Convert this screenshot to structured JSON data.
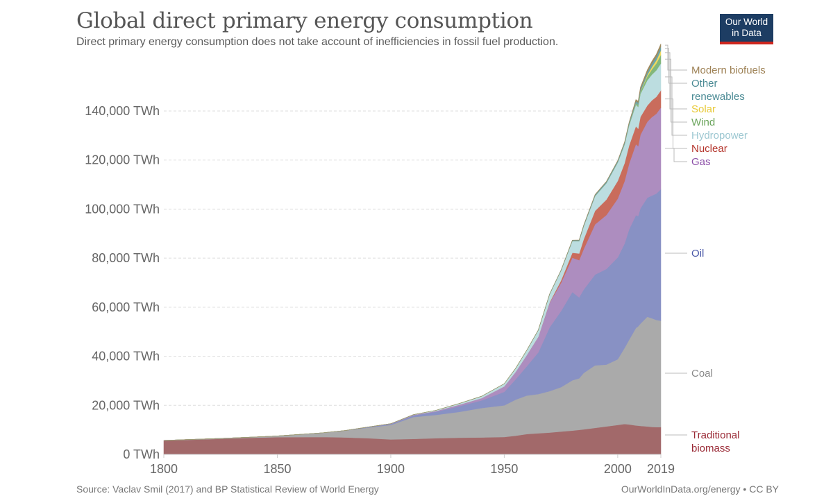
{
  "header": {
    "title": "Global direct primary energy consumption",
    "subtitle": "Direct primary energy consumption does not take account of inefficiencies in fossil fuel production.",
    "logo_line1": "Our World",
    "logo_line2": "in Data"
  },
  "footer": {
    "source": "Source: Vaclav Smil (2017) and BP Statistical Review of World Energy",
    "credit": "OurWorldInData.org/energy • CC BY"
  },
  "chart_data": {
    "type": "area",
    "stacked": true,
    "title": "Global direct primary energy consumption",
    "subtitle": "Direct primary energy consumption does not take account of inefficiencies in fossil fuel production.",
    "xlabel": "",
    "ylabel": "",
    "unit": "TWh",
    "xlim": [
      1800,
      2019
    ],
    "ylim": [
      0,
      160000
    ],
    "x_ticks": [
      "1800",
      "1850",
      "1900",
      "1950",
      "2000",
      "2019"
    ],
    "y_ticks": [
      "0 TWh",
      "20,000 TWh",
      "40,000 TWh",
      "60,000 TWh",
      "80,000 TWh",
      "100,000 TWh",
      "120,000 TWh",
      "140,000 TWh"
    ],
    "y_tick_values": [
      0,
      20000,
      40000,
      60000,
      80000,
      100000,
      120000,
      140000
    ],
    "grid": "horizontal-dashed",
    "legend": "right",
    "x": [
      1800,
      1810,
      1820,
      1830,
      1840,
      1850,
      1860,
      1870,
      1880,
      1890,
      1900,
      1910,
      1920,
      1930,
      1940,
      1950,
      1955,
      1960,
      1965,
      1970,
      1975,
      1980,
      1983,
      1985,
      1990,
      1995,
      2000,
      2003,
      2005,
      2008,
      2009,
      2010,
      2013,
      2015,
      2017,
      2019
    ],
    "series": [
      {
        "name": "Traditional biomass",
        "color": "#a2696a",
        "label_color": "#9a2a36",
        "values": [
          5600,
          5900,
          6200,
          6500,
          6800,
          7000,
          7050,
          7100,
          6900,
          6600,
          6100,
          6300,
          6600,
          6800,
          6900,
          7100,
          7600,
          8300,
          8600,
          8900,
          9300,
          9700,
          10000,
          10200,
          10800,
          11400,
          12000,
          12400,
          12200,
          11800,
          11700,
          11600,
          11400,
          11200,
          11100,
          11100
        ]
      },
      {
        "name": "Coal",
        "color": "#aaaaaa",
        "label_color": "#888888",
        "values": [
          100,
          120,
          150,
          200,
          300,
          500,
          1100,
          1700,
          2800,
          4300,
          5900,
          8900,
          9500,
          10500,
          12000,
          12900,
          14700,
          15700,
          16000,
          16900,
          18100,
          20500,
          21000,
          23000,
          25500,
          25200,
          26800,
          31000,
          34500,
          39700,
          40500,
          41700,
          44700,
          44300,
          43700,
          43400
        ]
      },
      {
        "name": "Oil",
        "color": "#8891c4",
        "label_color": "#4a58a8",
        "values": [
          0,
          0,
          0,
          0,
          0,
          0,
          0,
          0,
          50,
          200,
          400,
          700,
          1300,
          2300,
          3100,
          5500,
          8300,
          12000,
          17000,
          26000,
          31000,
          36000,
          33000,
          34000,
          37000,
          39000,
          41500,
          42500,
          45000,
          46000,
          45000,
          47000,
          48500,
          50000,
          51500,
          53600
        ]
      },
      {
        "name": "Gas",
        "color": "#ad8dbf",
        "label_color": "#8c4fa8",
        "values": [
          0,
          0,
          0,
          0,
          0,
          0,
          0,
          0,
          0,
          50,
          100,
          200,
          300,
          600,
          900,
          2200,
          3000,
          4600,
          6300,
          10000,
          11500,
          14000,
          15200,
          16500,
          20500,
          22000,
          24000,
          25500,
          26800,
          29000,
          28500,
          30000,
          31000,
          32000,
          32600,
          33300
        ]
      },
      {
        "name": "Nuclear",
        "color": "#c96c5c",
        "label_color": "#b4342b",
        "values": [
          0,
          0,
          0,
          0,
          0,
          0,
          0,
          0,
          0,
          0,
          0,
          0,
          0,
          0,
          0,
          0,
          0,
          0,
          30,
          200,
          1000,
          2000,
          2700,
          4000,
          5500,
          6300,
          7200,
          7300,
          7400,
          7300,
          7100,
          7300,
          6600,
          6800,
          6900,
          7000
        ]
      },
      {
        "name": "Hydropower",
        "color": "#bcdde0",
        "label_color": "#9cc7d1",
        "values": [
          0,
          0,
          0,
          0,
          0,
          0,
          0,
          0,
          0,
          0,
          20,
          100,
          300,
          500,
          800,
          1100,
          1500,
          2000,
          2700,
          3300,
          4000,
          4800,
          5100,
          5300,
          6000,
          6700,
          7500,
          7600,
          8200,
          8800,
          8900,
          9400,
          10300,
          10500,
          10800,
          11000
        ]
      },
      {
        "name": "Wind",
        "color": "#82b77b",
        "label_color": "#6ba55c",
        "values": [
          0,
          0,
          0,
          0,
          0,
          0,
          0,
          0,
          0,
          0,
          0,
          0,
          0,
          0,
          0,
          0,
          0,
          0,
          0,
          0,
          0,
          0,
          0,
          0,
          10,
          20,
          80,
          150,
          250,
          500,
          620,
          800,
          1500,
          2100,
          2800,
          3500
        ]
      },
      {
        "name": "Solar",
        "color": "#f1d95e",
        "label_color": "#e8c937",
        "values": [
          0,
          0,
          0,
          0,
          0,
          0,
          0,
          0,
          0,
          0,
          0,
          0,
          0,
          0,
          0,
          0,
          0,
          0,
          0,
          0,
          0,
          0,
          0,
          0,
          0,
          0,
          5,
          10,
          20,
          60,
          100,
          160,
          630,
          1000,
          1300,
          1800
        ]
      },
      {
        "name": "Other renewables",
        "color": "#6aa5ab",
        "label_color": "#4a8a94",
        "values": [
          0,
          0,
          0,
          0,
          0,
          0,
          0,
          0,
          0,
          0,
          0,
          0,
          0,
          0,
          0,
          0,
          0,
          0,
          100,
          150,
          200,
          300,
          350,
          400,
          500,
          550,
          600,
          700,
          750,
          900,
          950,
          1000,
          1200,
          1350,
          1450,
          1600
        ]
      },
      {
        "name": "Modern biofuels",
        "color": "#a08a5e",
        "label_color": "#9e8256",
        "values": [
          0,
          0,
          0,
          0,
          0,
          0,
          0,
          0,
          0,
          0,
          0,
          0,
          0,
          0,
          0,
          0,
          0,
          0,
          0,
          0,
          0,
          50,
          80,
          100,
          120,
          140,
          150,
          200,
          300,
          600,
          650,
          750,
          900,
          950,
          1000,
          1100
        ]
      }
    ]
  }
}
